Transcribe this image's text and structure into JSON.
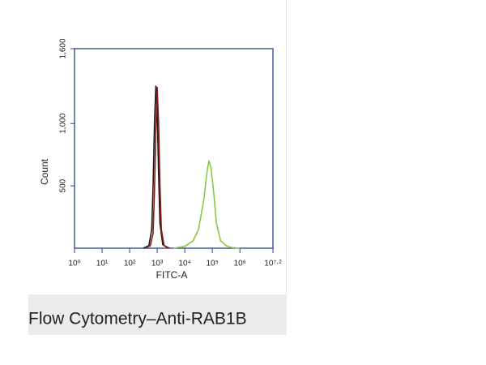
{
  "chart_data": {
    "type": "line",
    "caption": "Flow Cytometry–Anti-RAB1B",
    "xlabel": "FITC-A",
    "ylabel": "Count",
    "xscale": "log",
    "xlim": [
      1,
      15848932
    ],
    "ylim": [
      0,
      1600
    ],
    "xticks": [
      {
        "value": 1,
        "label": "10⁰"
      },
      {
        "value": 10,
        "label": "10¹"
      },
      {
        "value": 100,
        "label": "10²"
      },
      {
        "value": 1000,
        "label": "10³"
      },
      {
        "value": 10000,
        "label": "10⁴"
      },
      {
        "value": 100000,
        "label": "10⁵"
      },
      {
        "value": 1000000,
        "label": "10⁶"
      },
      {
        "value": 15848932,
        "label": "10⁷·²"
      }
    ],
    "yticks": [
      500,
      {
        "value": 1000,
        "label": "1,000"
      },
      {
        "value": 1600,
        "label": "1,600"
      }
    ],
    "axis_color": "#2b3f8f",
    "series": [
      {
        "color": "#1a1a1a",
        "x": [
          316,
          500,
          631,
          708,
          794,
          891,
          1000,
          1122,
          1259,
          1585,
          2512
        ],
        "values": [
          0,
          20,
          150,
          500,
          1000,
          1300,
          1100,
          600,
          200,
          30,
          0
        ]
      },
      {
        "color": "#8b1a1a",
        "x": [
          355,
          562,
          708,
          794,
          891,
          1000,
          1122,
          1259,
          1413,
          1778,
          2818
        ],
        "values": [
          0,
          20,
          120,
          450,
          950,
          1290,
          1000,
          500,
          150,
          20,
          0
        ]
      },
      {
        "color": "#8dc63f",
        "x": [
          3981,
          10000,
          20000,
          31623,
          50000,
          63096,
          75000,
          89125,
          112202,
          141254,
          199526,
          316228,
          500000,
          1000000
        ],
        "values": [
          0,
          15,
          60,
          150,
          400,
          600,
          700,
          650,
          450,
          200,
          60,
          20,
          5,
          0
        ]
      }
    ]
  }
}
